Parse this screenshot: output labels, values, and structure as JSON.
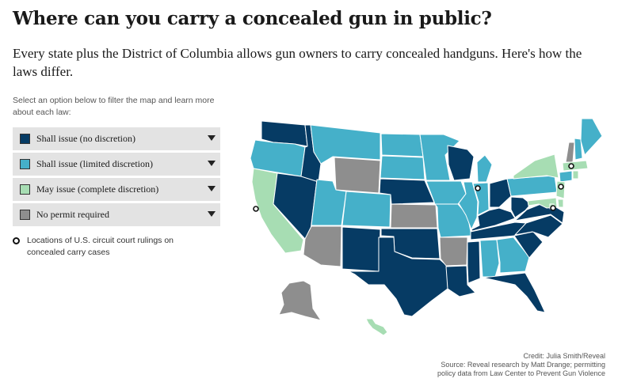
{
  "header": {
    "title": "Where can you carry a concealed gun in public?",
    "subtitle": "Every state plus the District of Columbia allows gun owners to carry concealed handguns. Here's how the laws differ."
  },
  "instructions": "Select an option below to filter the map and learn more about each law:",
  "filters": [
    {
      "label": "Shall issue (no discretion)",
      "color": "#063b64",
      "key": "shall-no-discretion"
    },
    {
      "label": "Shall issue (limited discretion)",
      "color": "#45b0c9",
      "key": "shall-limited"
    },
    {
      "label": "May issue (complete discretion)",
      "color": "#a7ddb3",
      "key": "may-issue"
    },
    {
      "label": "No permit required",
      "color": "#8e8e8e",
      "key": "no-permit"
    }
  ],
  "locations_note": "Locations of U.S. circuit court rulings on concealed carry cases",
  "credit": {
    "line1": "Credit: Julia Smith/Reveal",
    "line2": "Source: Reveal research by Matt Drange; permitting",
    "line3": "policy data from Law Center to Prevent Gun Violence"
  },
  "states": [
    {
      "id": "WA",
      "cat": "shall-no-discretion"
    },
    {
      "id": "OR",
      "cat": "shall-limited"
    },
    {
      "id": "CA",
      "cat": "may-issue"
    },
    {
      "id": "NV",
      "cat": "shall-no-discretion"
    },
    {
      "id": "ID",
      "cat": "shall-no-discretion"
    },
    {
      "id": "MT",
      "cat": "shall-limited"
    },
    {
      "id": "WY",
      "cat": "no-permit"
    },
    {
      "id": "UT",
      "cat": "shall-limited"
    },
    {
      "id": "AZ",
      "cat": "no-permit"
    },
    {
      "id": "CO",
      "cat": "shall-limited"
    },
    {
      "id": "NM",
      "cat": "shall-no-discretion"
    },
    {
      "id": "ND",
      "cat": "shall-limited"
    },
    {
      "id": "SD",
      "cat": "shall-limited"
    },
    {
      "id": "NE",
      "cat": "shall-no-discretion"
    },
    {
      "id": "KS",
      "cat": "no-permit"
    },
    {
      "id": "OK",
      "cat": "shall-no-discretion"
    },
    {
      "id": "TX",
      "cat": "shall-no-discretion"
    },
    {
      "id": "MN",
      "cat": "shall-limited"
    },
    {
      "id": "IA",
      "cat": "shall-limited"
    },
    {
      "id": "MO",
      "cat": "shall-limited"
    },
    {
      "id": "AR",
      "cat": "no-permit"
    },
    {
      "id": "LA",
      "cat": "shall-no-discretion"
    },
    {
      "id": "WI",
      "cat": "shall-no-discretion"
    },
    {
      "id": "IL",
      "cat": "shall-limited"
    },
    {
      "id": "MS",
      "cat": "shall-no-discretion"
    },
    {
      "id": "MI",
      "cat": "shall-limited"
    },
    {
      "id": "IN",
      "cat": "shall-limited"
    },
    {
      "id": "OH",
      "cat": "shall-no-discretion"
    },
    {
      "id": "KY",
      "cat": "shall-no-discretion"
    },
    {
      "id": "TN",
      "cat": "shall-no-discretion"
    },
    {
      "id": "AL",
      "cat": "shall-limited"
    },
    {
      "id": "GA",
      "cat": "shall-limited"
    },
    {
      "id": "FL",
      "cat": "shall-no-discretion"
    },
    {
      "id": "SC",
      "cat": "shall-no-discretion"
    },
    {
      "id": "NC",
      "cat": "shall-no-discretion"
    },
    {
      "id": "VA",
      "cat": "shall-no-discretion"
    },
    {
      "id": "WV",
      "cat": "shall-no-discretion"
    },
    {
      "id": "PA",
      "cat": "shall-limited"
    },
    {
      "id": "NY",
      "cat": "may-issue"
    },
    {
      "id": "VT",
      "cat": "no-permit"
    },
    {
      "id": "NH",
      "cat": "shall-limited"
    },
    {
      "id": "ME",
      "cat": "shall-limited"
    },
    {
      "id": "MA",
      "cat": "may-issue"
    },
    {
      "id": "CT",
      "cat": "shall-limited"
    },
    {
      "id": "RI",
      "cat": "may-issue"
    },
    {
      "id": "NJ",
      "cat": "may-issue"
    },
    {
      "id": "DE",
      "cat": "may-issue"
    },
    {
      "id": "MD",
      "cat": "may-issue"
    },
    {
      "id": "DC",
      "cat": "may-issue"
    },
    {
      "id": "AK",
      "cat": "no-permit"
    },
    {
      "id": "HI",
      "cat": "may-issue"
    }
  ],
  "court_rulings": [
    {
      "near": "CA"
    },
    {
      "near": "IL"
    },
    {
      "near": "MD"
    },
    {
      "near": "NJ"
    },
    {
      "near": "NY"
    }
  ]
}
